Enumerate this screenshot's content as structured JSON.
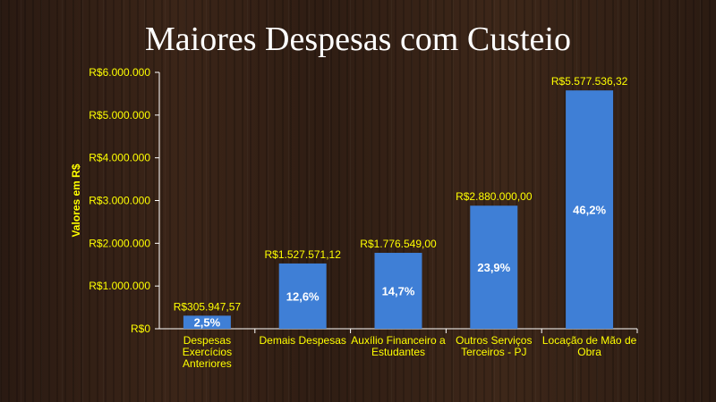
{
  "title": "Maiores Despesas com Custeio",
  "chart_data": {
    "type": "bar",
    "title": "Maiores Despesas com Custeio",
    "ylabel": "Valores em R$",
    "xlabel": "",
    "ylim": [
      0,
      6000000
    ],
    "yticks": [
      "R$0",
      "R$1.000.000",
      "R$2.000.000",
      "R$3.000.000",
      "R$4.000.000",
      "R$5.000.000",
      "R$6.000.000"
    ],
    "ytick_values": [
      0,
      1000000,
      2000000,
      3000000,
      4000000,
      5000000,
      6000000
    ],
    "categories": [
      [
        "Despesas",
        "Exercícios",
        "Anteriores"
      ],
      [
        "Demais Despesas"
      ],
      [
        "Auxílio Financeiro a",
        "Estudantes"
      ],
      [
        "Outros Serviços",
        "Terceiros - PJ"
      ],
      [
        "Locação de Mão de",
        "Obra"
      ]
    ],
    "values": [
      305947.57,
      1527571.12,
      1776549.0,
      2880000.0,
      5577536.32
    ],
    "value_labels": [
      "R$305.947,57",
      "R$1.527.571,12",
      "R$1.776.549,00",
      "R$2.880.000,00",
      "R$5.577.536,32"
    ],
    "percent_labels": [
      "2,5%",
      "12,6%",
      "14,7%",
      "23,9%",
      "46,2%"
    ],
    "bar_color": "#3f7fd6",
    "text_color": "#ffff00",
    "grid": false
  }
}
